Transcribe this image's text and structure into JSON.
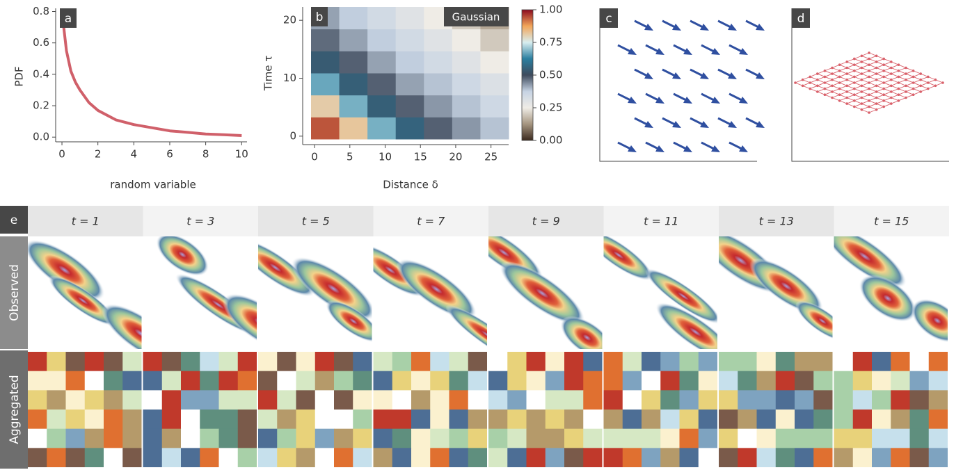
{
  "chart_data": [
    {
      "type": "line",
      "panel": "a",
      "ylabel": "PDF",
      "xlabel": "random variable",
      "color": "#d0606a",
      "x": [
        0.1,
        0.25,
        0.5,
        0.75,
        1,
        1.5,
        2,
        3,
        4,
        5,
        6,
        7,
        8,
        9,
        10
      ],
      "values": [
        0.7,
        0.55,
        0.42,
        0.35,
        0.3,
        0.22,
        0.17,
        0.11,
        0.08,
        0.06,
        0.04,
        0.03,
        0.02,
        0.015,
        0.01
      ],
      "xlim": [
        -0.35,
        10.3
      ],
      "ylim": [
        -0.03,
        0.82
      ],
      "xticks": [
        0,
        2,
        4,
        6,
        8,
        10
      ],
      "yticks": [
        {
          "value": 0,
          "label": "0.0"
        },
        {
          "value": 0.2,
          "label": "0.2"
        },
        {
          "value": 0.4,
          "label": "0.4"
        },
        {
          "value": 0.6,
          "label": "0.6"
        },
        {
          "value": 0.8,
          "label": "0.8"
        }
      ]
    },
    {
      "type": "heatmap",
      "panel": "b",
      "annotation": "Gaussian",
      "xlabel": "Distance δ",
      "ylabel": "Time τ",
      "x_edges": [
        -0.5,
        3.5,
        7.5,
        11.5,
        15.5,
        19.5,
        23.5,
        27.5
      ],
      "y_edges": [
        -0.5,
        3.3,
        7.1,
        10.9,
        14.7,
        18.5,
        22.3
      ],
      "z": [
        [
          0.94,
          0.82,
          0.68,
          0.56,
          0.48,
          0.43,
          0.39
        ],
        [
          0.81,
          0.68,
          0.55,
          0.48,
          0.43,
          0.39,
          0.35
        ],
        [
          0.67,
          0.55,
          0.48,
          0.42,
          0.39,
          0.35,
          0.31
        ],
        [
          0.54,
          0.48,
          0.42,
          0.38,
          0.34,
          0.3,
          0.25
        ],
        [
          0.47,
          0.42,
          0.38,
          0.34,
          0.3,
          0.25,
          0.2
        ],
        [
          0.42,
          0.38,
          0.34,
          0.3,
          0.25,
          0.2,
          0.15
        ]
      ],
      "xlim": [
        -0.5,
        27.5
      ],
      "ylim": [
        -0.5,
        22.3
      ],
      "xticks": [
        0,
        5,
        10,
        15,
        20,
        25
      ],
      "yticks": [
        0,
        10,
        20
      ],
      "clim": [
        0,
        1
      ],
      "colors": [
        "#3b2a1e",
        "#a59580",
        "#efece6",
        "#c6d3e3",
        "#3e4a5c",
        "#2b7fa0",
        "#d8eef0",
        "#f2a65a",
        "#8b0a1e"
      ],
      "cticks": [
        {
          "value": 0,
          "label": "0.00"
        },
        {
          "value": 0.25,
          "label": "0.25"
        },
        {
          "value": 0.5,
          "label": "0.50"
        },
        {
          "value": 0.75,
          "label": "0.75"
        },
        {
          "value": 1,
          "label": "1.00"
        }
      ]
    },
    {
      "type": "quiver",
      "panel": "c",
      "color": "#2f4fa0"
    },
    {
      "type": "mesh",
      "panel": "d",
      "color": "#d9606a"
    },
    {
      "type": "image-grid",
      "panel": "e",
      "columns": [
        "t = 1",
        "t = 3",
        "t = 5",
        "t = 7",
        "t = 9",
        "t = 11",
        "t = 13",
        "t = 15"
      ],
      "rows": [
        "Observed",
        "Aggregated"
      ]
    }
  ]
}
